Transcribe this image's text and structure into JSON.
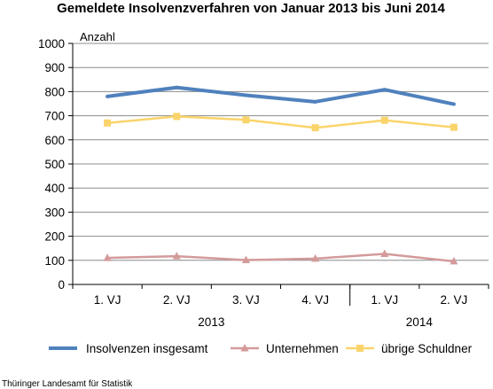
{
  "source_note": "Thüringer Landesamt für Statistik",
  "chart_data": {
    "type": "line",
    "title": "Gemeldete Insolvenzverfahren von Januar 2013 bis Juni 2014",
    "ylabel": "Anzahl",
    "xlabel": "",
    "categories": [
      "1. VJ",
      "2. VJ",
      "3. VJ",
      "4. VJ",
      "1. VJ",
      "2. VJ"
    ],
    "groups": [
      {
        "label": "2013",
        "count": 4
      },
      {
        "label": "2014",
        "count": 2
      }
    ],
    "ylim": [
      0,
      1000
    ],
    "yticks": [
      0,
      100,
      200,
      300,
      400,
      500,
      600,
      700,
      800,
      900,
      1000
    ],
    "grid": true,
    "legend_position": "bottom",
    "series": [
      {
        "name": "Insolvenzen insgesamt",
        "values": [
          780,
          817,
          785,
          758,
          808,
          748
        ],
        "color": "#4f81bd",
        "marker": "none"
      },
      {
        "name": "Unternehmen",
        "values": [
          110,
          117,
          101,
          107,
          127,
          96
        ],
        "color": "#d49a9a",
        "marker": "triangle"
      },
      {
        "name": "übrige Schuldner",
        "values": [
          670,
          697,
          683,
          650,
          681,
          652
        ],
        "color": "#fad46b",
        "marker": "square"
      }
    ]
  }
}
